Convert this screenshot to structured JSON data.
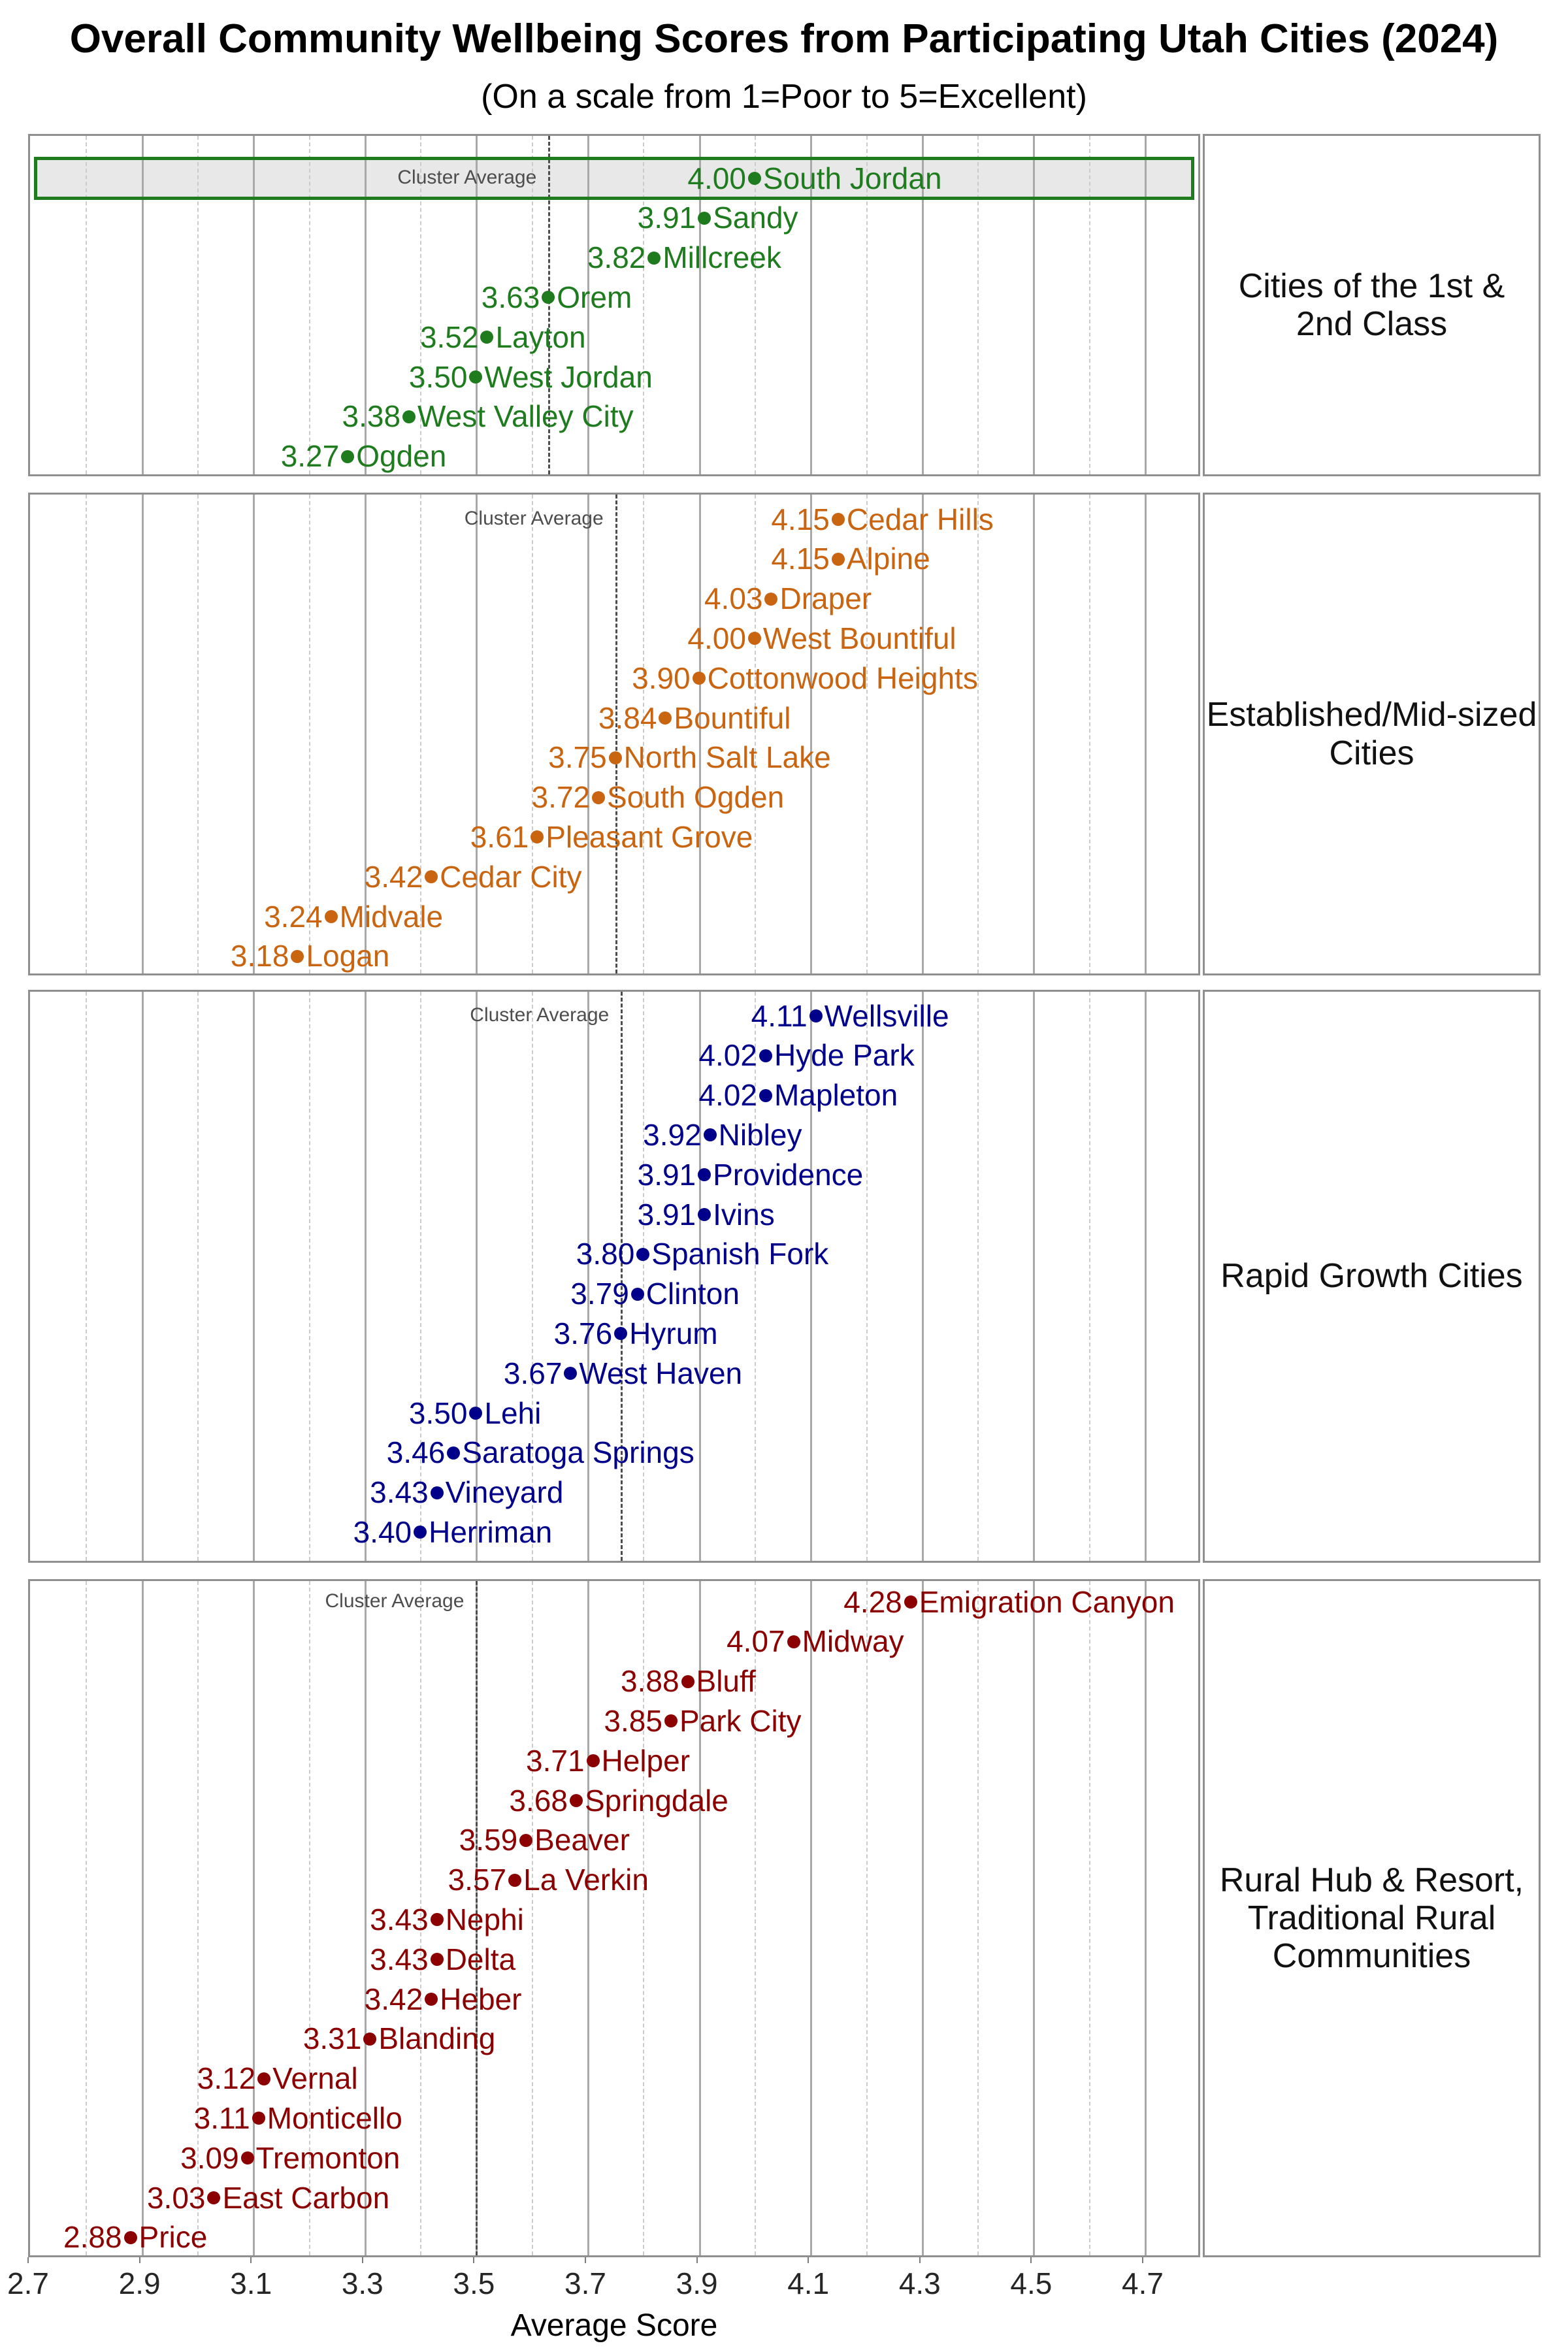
{
  "title": "Overall Community Wellbeing Scores from Participating Utah Cities (2024)",
  "subtitle": "(On a scale from 1=Poor to 5=Excellent)",
  "axis": {
    "label": "Average Score",
    "major_ticks": [
      2.7,
      2.9,
      3.1,
      3.3,
      3.5,
      3.7,
      3.9,
      4.1,
      4.3,
      4.5,
      4.7
    ],
    "minor_ticks": [
      2.8,
      3.0,
      3.2,
      3.4,
      3.6,
      3.8,
      4.0,
      4.2,
      4.4,
      4.6
    ],
    "min": 2.7,
    "max": 4.8
  },
  "colors": {
    "highlight_fill": "#e8e8e8",
    "cluster_line": "#4d4d4d",
    "grid_major": "#a9a9a9",
    "grid_minor": "#cbcbcb",
    "panel_border": "#8f8f8f"
  },
  "chart_data": {
    "type": "scatter",
    "subtype": "faceted-dot-plot",
    "title": "Overall Community Wellbeing Scores from Participating Utah Cities (2024)",
    "subtitle": "(On a scale from 1=Poor to 5=Excellent)",
    "xlabel": "Average Score",
    "xlim": [
      2.7,
      4.8
    ],
    "grid": "on",
    "cluster_average_label": "Cluster Average",
    "panels": [
      {
        "label": "Cities of the 1st &\n2nd Class",
        "color": "#1e7b1e",
        "cluster_average": 3.63,
        "cities": [
          {
            "name": "South Jordan",
            "value": 4.0,
            "highlight": true
          },
          {
            "name": "Sandy",
            "value": 3.91
          },
          {
            "name": "Millcreek",
            "value": 3.82
          },
          {
            "name": "Orem",
            "value": 3.63
          },
          {
            "name": "Layton",
            "value": 3.52
          },
          {
            "name": "West Jordan",
            "value": 3.5
          },
          {
            "name": "West Valley City",
            "value": 3.38
          },
          {
            "name": "Ogden",
            "value": 3.27
          }
        ]
      },
      {
        "label": "Established/Mid-sized\nCities",
        "color": "#c96511",
        "cluster_average": 3.75,
        "cities": [
          {
            "name": "Cedar Hills",
            "value": 4.15
          },
          {
            "name": "Alpine",
            "value": 4.15
          },
          {
            "name": "Draper",
            "value": 4.03
          },
          {
            "name": "West Bountiful",
            "value": 4.0
          },
          {
            "name": "Cottonwood Heights",
            "value": 3.9
          },
          {
            "name": "Bountiful",
            "value": 3.84
          },
          {
            "name": "North Salt Lake",
            "value": 3.75
          },
          {
            "name": "South Ogden",
            "value": 3.72
          },
          {
            "name": "Pleasant Grove",
            "value": 3.61
          },
          {
            "name": "Cedar City",
            "value": 3.42
          },
          {
            "name": "Midvale",
            "value": 3.24
          },
          {
            "name": "Logan",
            "value": 3.18
          }
        ]
      },
      {
        "label": "Rapid Growth Cities",
        "color": "#00008b",
        "cluster_average": 3.76,
        "cities": [
          {
            "name": "Wellsville",
            "value": 4.11
          },
          {
            "name": "Hyde Park",
            "value": 4.02
          },
          {
            "name": "Mapleton",
            "value": 4.02
          },
          {
            "name": "Nibley",
            "value": 3.92
          },
          {
            "name": "Providence",
            "value": 3.91
          },
          {
            "name": "Ivins",
            "value": 3.91
          },
          {
            "name": "Spanish Fork",
            "value": 3.8
          },
          {
            "name": "Clinton",
            "value": 3.79
          },
          {
            "name": "Hyrum",
            "value": 3.76
          },
          {
            "name": "West Haven",
            "value": 3.67
          },
          {
            "name": "Lehi",
            "value": 3.5
          },
          {
            "name": "Saratoga Springs",
            "value": 3.46
          },
          {
            "name": "Vineyard",
            "value": 3.43
          },
          {
            "name": "Herriman",
            "value": 3.4
          }
        ]
      },
      {
        "label": "Rural Hub & Resort,\nTraditional Rural\nCommunities",
        "color": "#8b0000",
        "cluster_average": 3.5,
        "cities": [
          {
            "name": "Emigration Canyon",
            "value": 4.28
          },
          {
            "name": "Midway",
            "value": 4.07
          },
          {
            "name": "Bluff",
            "value": 3.88
          },
          {
            "name": "Park City",
            "value": 3.85
          },
          {
            "name": "Helper",
            "value": 3.71
          },
          {
            "name": "Springdale",
            "value": 3.68
          },
          {
            "name": "Beaver",
            "value": 3.59
          },
          {
            "name": "La Verkin",
            "value": 3.57
          },
          {
            "name": "Nephi",
            "value": 3.43
          },
          {
            "name": "Delta",
            "value": 3.43
          },
          {
            "name": "Heber",
            "value": 3.42
          },
          {
            "name": "Blanding",
            "value": 3.31
          },
          {
            "name": "Vernal",
            "value": 3.12
          },
          {
            "name": "Monticello",
            "value": 3.11
          },
          {
            "name": "Tremonton",
            "value": 3.09
          },
          {
            "name": "East Carbon",
            "value": 3.03
          },
          {
            "name": "Price",
            "value": 2.88
          }
        ]
      }
    ]
  }
}
